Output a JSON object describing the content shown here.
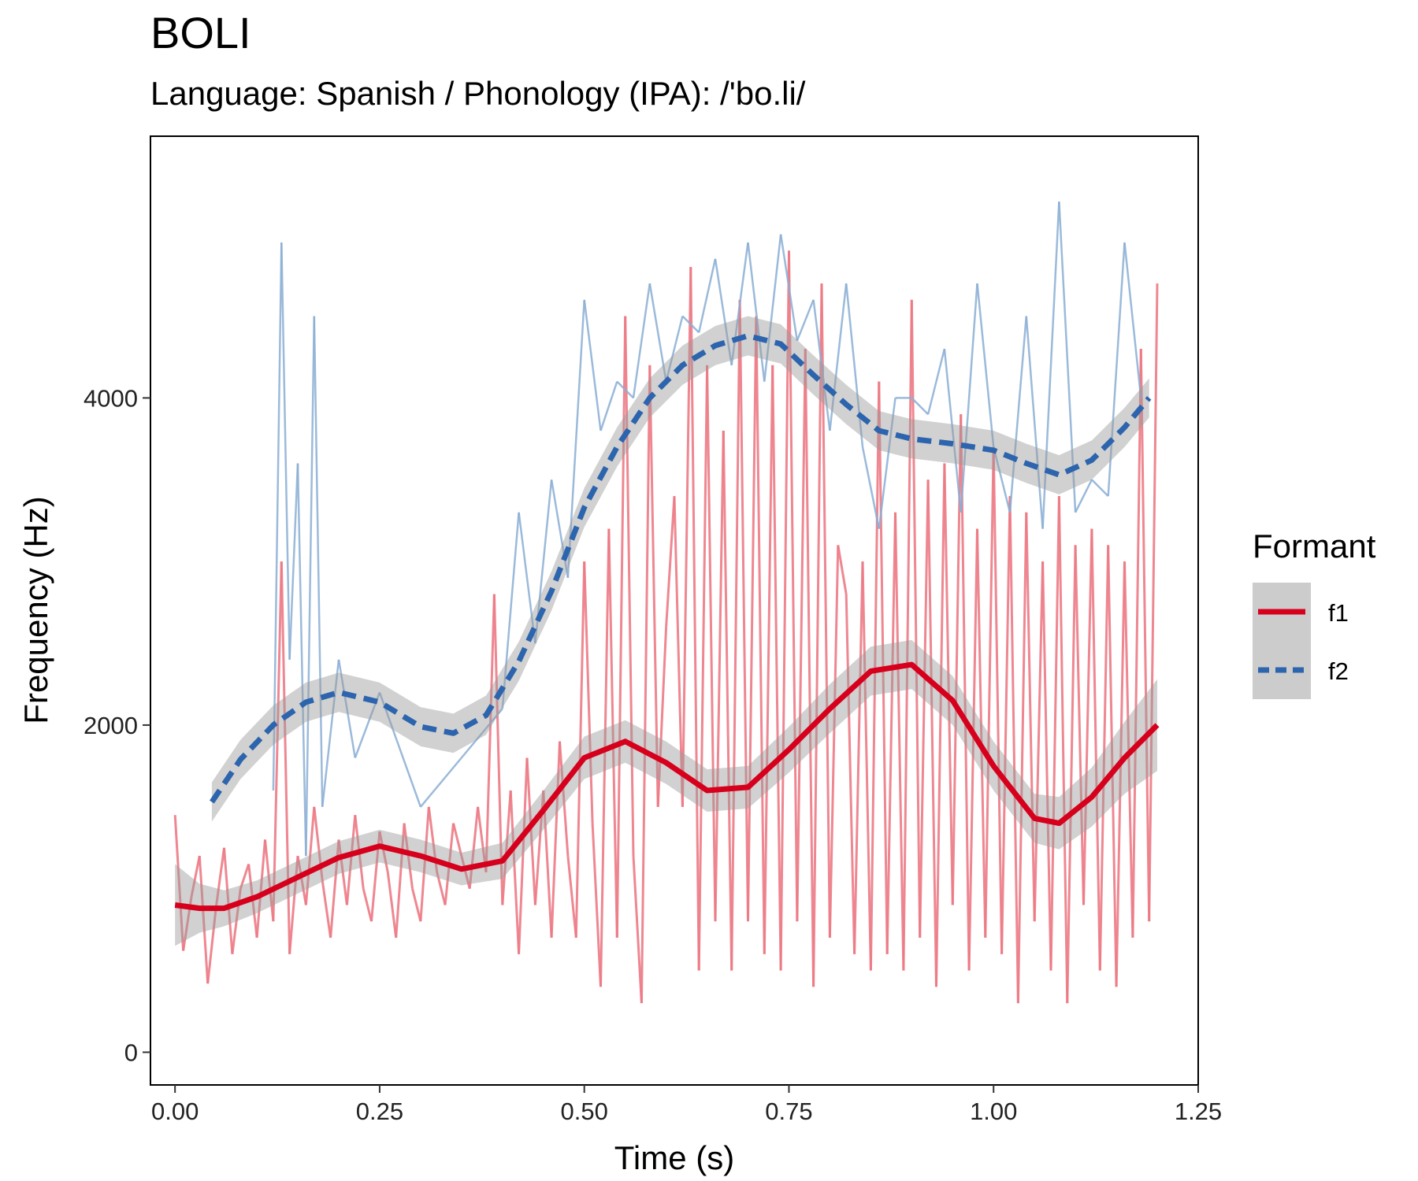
{
  "chart_data": {
    "type": "line",
    "title": "BOLI",
    "subtitle": "Language: Spanish / Phonology (IPA): /'bo.li/",
    "xlabel": "Time (s)",
    "ylabel": "Frequency (Hz)",
    "xlim": [
      -0.03,
      1.25
    ],
    "ylim": [
      -200,
      5600
    ],
    "x_ticks": [
      0.0,
      0.25,
      0.5,
      0.75,
      1.0,
      1.25
    ],
    "x_tick_labels": [
      "0.00",
      "0.25",
      "0.50",
      "0.75",
      "1.00",
      "1.25"
    ],
    "y_ticks": [
      0,
      2000,
      4000
    ],
    "y_tick_labels": [
      "0",
      "2000",
      "4000"
    ],
    "grid": false,
    "legend": {
      "title": "Formant",
      "position": "right"
    },
    "series": [
      {
        "name": "f1",
        "color": "#d7001c",
        "raw_color": "#ec7a85",
        "line_style": "solid",
        "smooth": {
          "x": [
            0.0,
            0.03,
            0.06,
            0.1,
            0.15,
            0.2,
            0.25,
            0.3,
            0.35,
            0.4,
            0.45,
            0.5,
            0.55,
            0.6,
            0.65,
            0.7,
            0.75,
            0.8,
            0.85,
            0.9,
            0.95,
            1.0,
            1.05,
            1.08,
            1.12,
            1.16,
            1.2
          ],
          "y": [
            900,
            880,
            880,
            950,
            1070,
            1190,
            1260,
            1200,
            1120,
            1170,
            1480,
            1800,
            1900,
            1770,
            1600,
            1620,
            1850,
            2100,
            2330,
            2370,
            2150,
            1750,
            1430,
            1400,
            1560,
            1800,
            2000
          ],
          "ci_halfwidth": [
            250,
            150,
            110,
            100,
            100,
            100,
            100,
            100,
            100,
            110,
            120,
            130,
            130,
            130,
            130,
            130,
            140,
            150,
            150,
            150,
            150,
            150,
            150,
            160,
            180,
            220,
            280
          ]
        },
        "raw": {
          "x": [
            0.0,
            0.01,
            0.02,
            0.03,
            0.04,
            0.05,
            0.06,
            0.07,
            0.08,
            0.09,
            0.1,
            0.11,
            0.12,
            0.13,
            0.14,
            0.15,
            0.16,
            0.17,
            0.18,
            0.19,
            0.2,
            0.21,
            0.22,
            0.23,
            0.24,
            0.25,
            0.26,
            0.27,
            0.28,
            0.29,
            0.3,
            0.31,
            0.32,
            0.33,
            0.34,
            0.35,
            0.36,
            0.37,
            0.38,
            0.39,
            0.4,
            0.41,
            0.42,
            0.43,
            0.44,
            0.45,
            0.46,
            0.47,
            0.48,
            0.49,
            0.5,
            0.51,
            0.52,
            0.53,
            0.54,
            0.55,
            0.56,
            0.57,
            0.58,
            0.59,
            0.6,
            0.61,
            0.62,
            0.63,
            0.64,
            0.65,
            0.66,
            0.67,
            0.68,
            0.69,
            0.7,
            0.71,
            0.72,
            0.73,
            0.74,
            0.75,
            0.76,
            0.77,
            0.78,
            0.79,
            0.8,
            0.81,
            0.82,
            0.83,
            0.84,
            0.85,
            0.86,
            0.87,
            0.88,
            0.89,
            0.9,
            0.91,
            0.92,
            0.93,
            0.94,
            0.95,
            0.96,
            0.97,
            0.98,
            0.99,
            1.0,
            1.01,
            1.02,
            1.03,
            1.04,
            1.05,
            1.06,
            1.07,
            1.08,
            1.09,
            1.1,
            1.11,
            1.12,
            1.13,
            1.14,
            1.15,
            1.16,
            1.17,
            1.18,
            1.19,
            1.2
          ],
          "y": [
            1450,
            620,
            950,
            1200,
            420,
            880,
            1250,
            600,
            1000,
            1150,
            700,
            1300,
            800,
            3000,
            600,
            1200,
            900,
            1500,
            1050,
            700,
            1300,
            900,
            1450,
            1000,
            800,
            1350,
            1100,
            700,
            1400,
            1000,
            800,
            1500,
            1100,
            900,
            1400,
            1200,
            1000,
            1500,
            1100,
            2800,
            900,
            1600,
            600,
            1800,
            900,
            1600,
            700,
            1900,
            1200,
            700,
            3000,
            1400,
            400,
            3200,
            700,
            4500,
            1200,
            300,
            4200,
            1500,
            2600,
            3400,
            1500,
            4800,
            500,
            4200,
            800,
            3800,
            500,
            4600,
            800,
            4500,
            600,
            4200,
            500,
            4900,
            800,
            4300,
            400,
            4700,
            700,
            3100,
            2800,
            600,
            3000,
            500,
            4100,
            600,
            3300,
            500,
            4600,
            700,
            3500,
            400,
            3600,
            900,
            3900,
            500,
            3200,
            700,
            3700,
            600,
            3400,
            300,
            3300,
            800,
            3000,
            500,
            3400,
            300,
            3100,
            900,
            3200,
            500,
            3100,
            400,
            3000,
            700,
            4300,
            800,
            4700
          ]
        }
      },
      {
        "name": "f2",
        "color": "#2c64ad",
        "raw_color": "#8aaed3",
        "line_style": "dashed",
        "smooth": {
          "x": [
            0.045,
            0.08,
            0.12,
            0.16,
            0.2,
            0.25,
            0.3,
            0.34,
            0.38,
            0.42,
            0.46,
            0.5,
            0.54,
            0.58,
            0.62,
            0.66,
            0.7,
            0.74,
            0.78,
            0.82,
            0.86,
            0.9,
            0.95,
            1.0,
            1.04,
            1.08,
            1.12,
            1.16,
            1.19
          ],
          "y": [
            1530,
            1790,
            2000,
            2140,
            2200,
            2140,
            1990,
            1950,
            2060,
            2390,
            2820,
            3330,
            3700,
            4000,
            4200,
            4320,
            4380,
            4330,
            4140,
            3960,
            3800,
            3750,
            3720,
            3680,
            3600,
            3530,
            3620,
            3820,
            4000
          ]
        },
        "raw": {
          "x": [
            0.12,
            0.13,
            0.14,
            0.15,
            0.16,
            0.17,
            0.18,
            0.2,
            0.22,
            0.25,
            0.3,
            0.35,
            0.4,
            0.42,
            0.44,
            0.46,
            0.48,
            0.5,
            0.52,
            0.54,
            0.56,
            0.58,
            0.6,
            0.62,
            0.64,
            0.66,
            0.68,
            0.7,
            0.72,
            0.74,
            0.76,
            0.78,
            0.8,
            0.82,
            0.84,
            0.86,
            0.88,
            0.9,
            0.92,
            0.94,
            0.96,
            0.98,
            1.0,
            1.02,
            1.04,
            1.06,
            1.08,
            1.1,
            1.12,
            1.14,
            1.16,
            1.18
          ],
          "y": [
            1600,
            4950,
            2400,
            3600,
            1200,
            4500,
            1500,
            2400,
            1800,
            2200,
            1500,
            1800,
            2100,
            3300,
            2500,
            3500,
            2900,
            4600,
            3800,
            4100,
            4000,
            4700,
            4100,
            4500,
            4400,
            4850,
            4200,
            4950,
            4100,
            5000,
            4350,
            4600,
            3800,
            4700,
            3700,
            3200,
            4000,
            4000,
            3900,
            4300,
            3300,
            4700,
            3700,
            3300,
            4500,
            3200,
            5200,
            3300,
            3500,
            3400,
            4950,
            4000
          ]
        }
      }
    ]
  }
}
